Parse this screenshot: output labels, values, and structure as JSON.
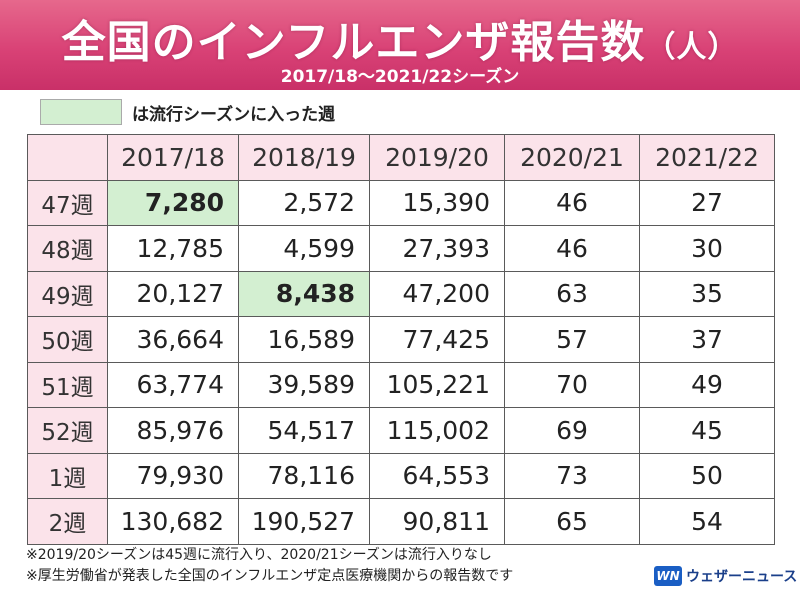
{
  "header": {
    "title": "全国のインフルエンザ報告数",
    "title_unit": "（人）",
    "subtitle": "2017/18～2021/22シーズン"
  },
  "legend": {
    "label": "は流行シーズンに入った週",
    "color": "#d3efd1"
  },
  "table": {
    "columns": [
      "",
      "2017/18",
      "2018/19",
      "2019/20",
      "2020/21",
      "2021/22"
    ],
    "rows": [
      {
        "week": "47週",
        "values": [
          "7,280",
          "2,572",
          "15,390",
          "46",
          "27"
        ]
      },
      {
        "week": "48週",
        "values": [
          "12,785",
          "4,599",
          "27,393",
          "46",
          "30"
        ]
      },
      {
        "week": "49週",
        "values": [
          "20,127",
          "8,438",
          "47,200",
          "63",
          "35"
        ]
      },
      {
        "week": "50週",
        "values": [
          "36,664",
          "16,589",
          "77,425",
          "57",
          "37"
        ]
      },
      {
        "week": "51週",
        "values": [
          "63,774",
          "39,589",
          "105,221",
          "70",
          "49"
        ]
      },
      {
        "week": "52週",
        "values": [
          "85,976",
          "54,517",
          "115,002",
          "69",
          "45"
        ]
      },
      {
        "week": "1週",
        "values": [
          "79,930",
          "78,116",
          "64,553",
          "73",
          "50"
        ]
      },
      {
        "week": "2週",
        "values": [
          "130,682",
          "190,527",
          "90,811",
          "65",
          "54"
        ]
      }
    ],
    "highlight_color": "#d3efd1",
    "header_color": "#fbe3ea"
  },
  "notes": [
    "※2019/20シーズンは45週に流行入り、2020/21シーズンは流行入りなし",
    "※厚生労働省が発表した全国のインフルエンザ定点医療機関からの報告数です"
  ],
  "logo": {
    "mark": "WN",
    "text": "ウェザーニュース"
  },
  "colors": {
    "banner": "#d94276"
  }
}
